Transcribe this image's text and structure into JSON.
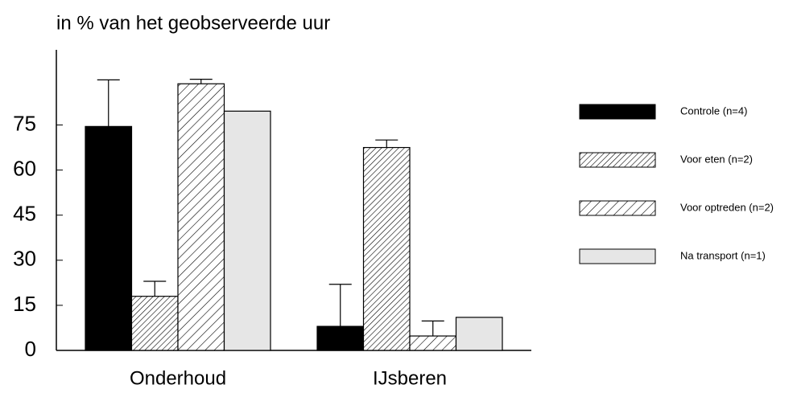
{
  "chart_data": {
    "type": "bar",
    "title": "in % van het geobserveerde uur",
    "categories": [
      "Onderhoud",
      "IJsberen"
    ],
    "series": [
      {
        "name": "Controle (n=4)",
        "color": "#000000",
        "hatch": null,
        "values": [
          74.5,
          8
        ],
        "errors": [
          15.5,
          14
        ]
      },
      {
        "name": "Voor eten (n=2)",
        "color": "#ffffff",
        "hatch": "dense",
        "values": [
          18,
          67.5
        ],
        "errors": [
          5,
          2.5
        ]
      },
      {
        "name": "Voor optreden (n=2)",
        "color": "#ffffff",
        "hatch": "sparse",
        "values": [
          88.7,
          4.8
        ],
        "errors": [
          1.5,
          5
        ]
      },
      {
        "name": "Na transport (n=1)",
        "color": "#e6e6e6",
        "hatch": null,
        "values": [
          79.6,
          11
        ],
        "errors": [
          null,
          null
        ]
      }
    ],
    "ylim": [
      0,
      100
    ],
    "yticks": [
      0,
      15,
      30,
      45,
      60,
      75
    ],
    "grid": false
  }
}
